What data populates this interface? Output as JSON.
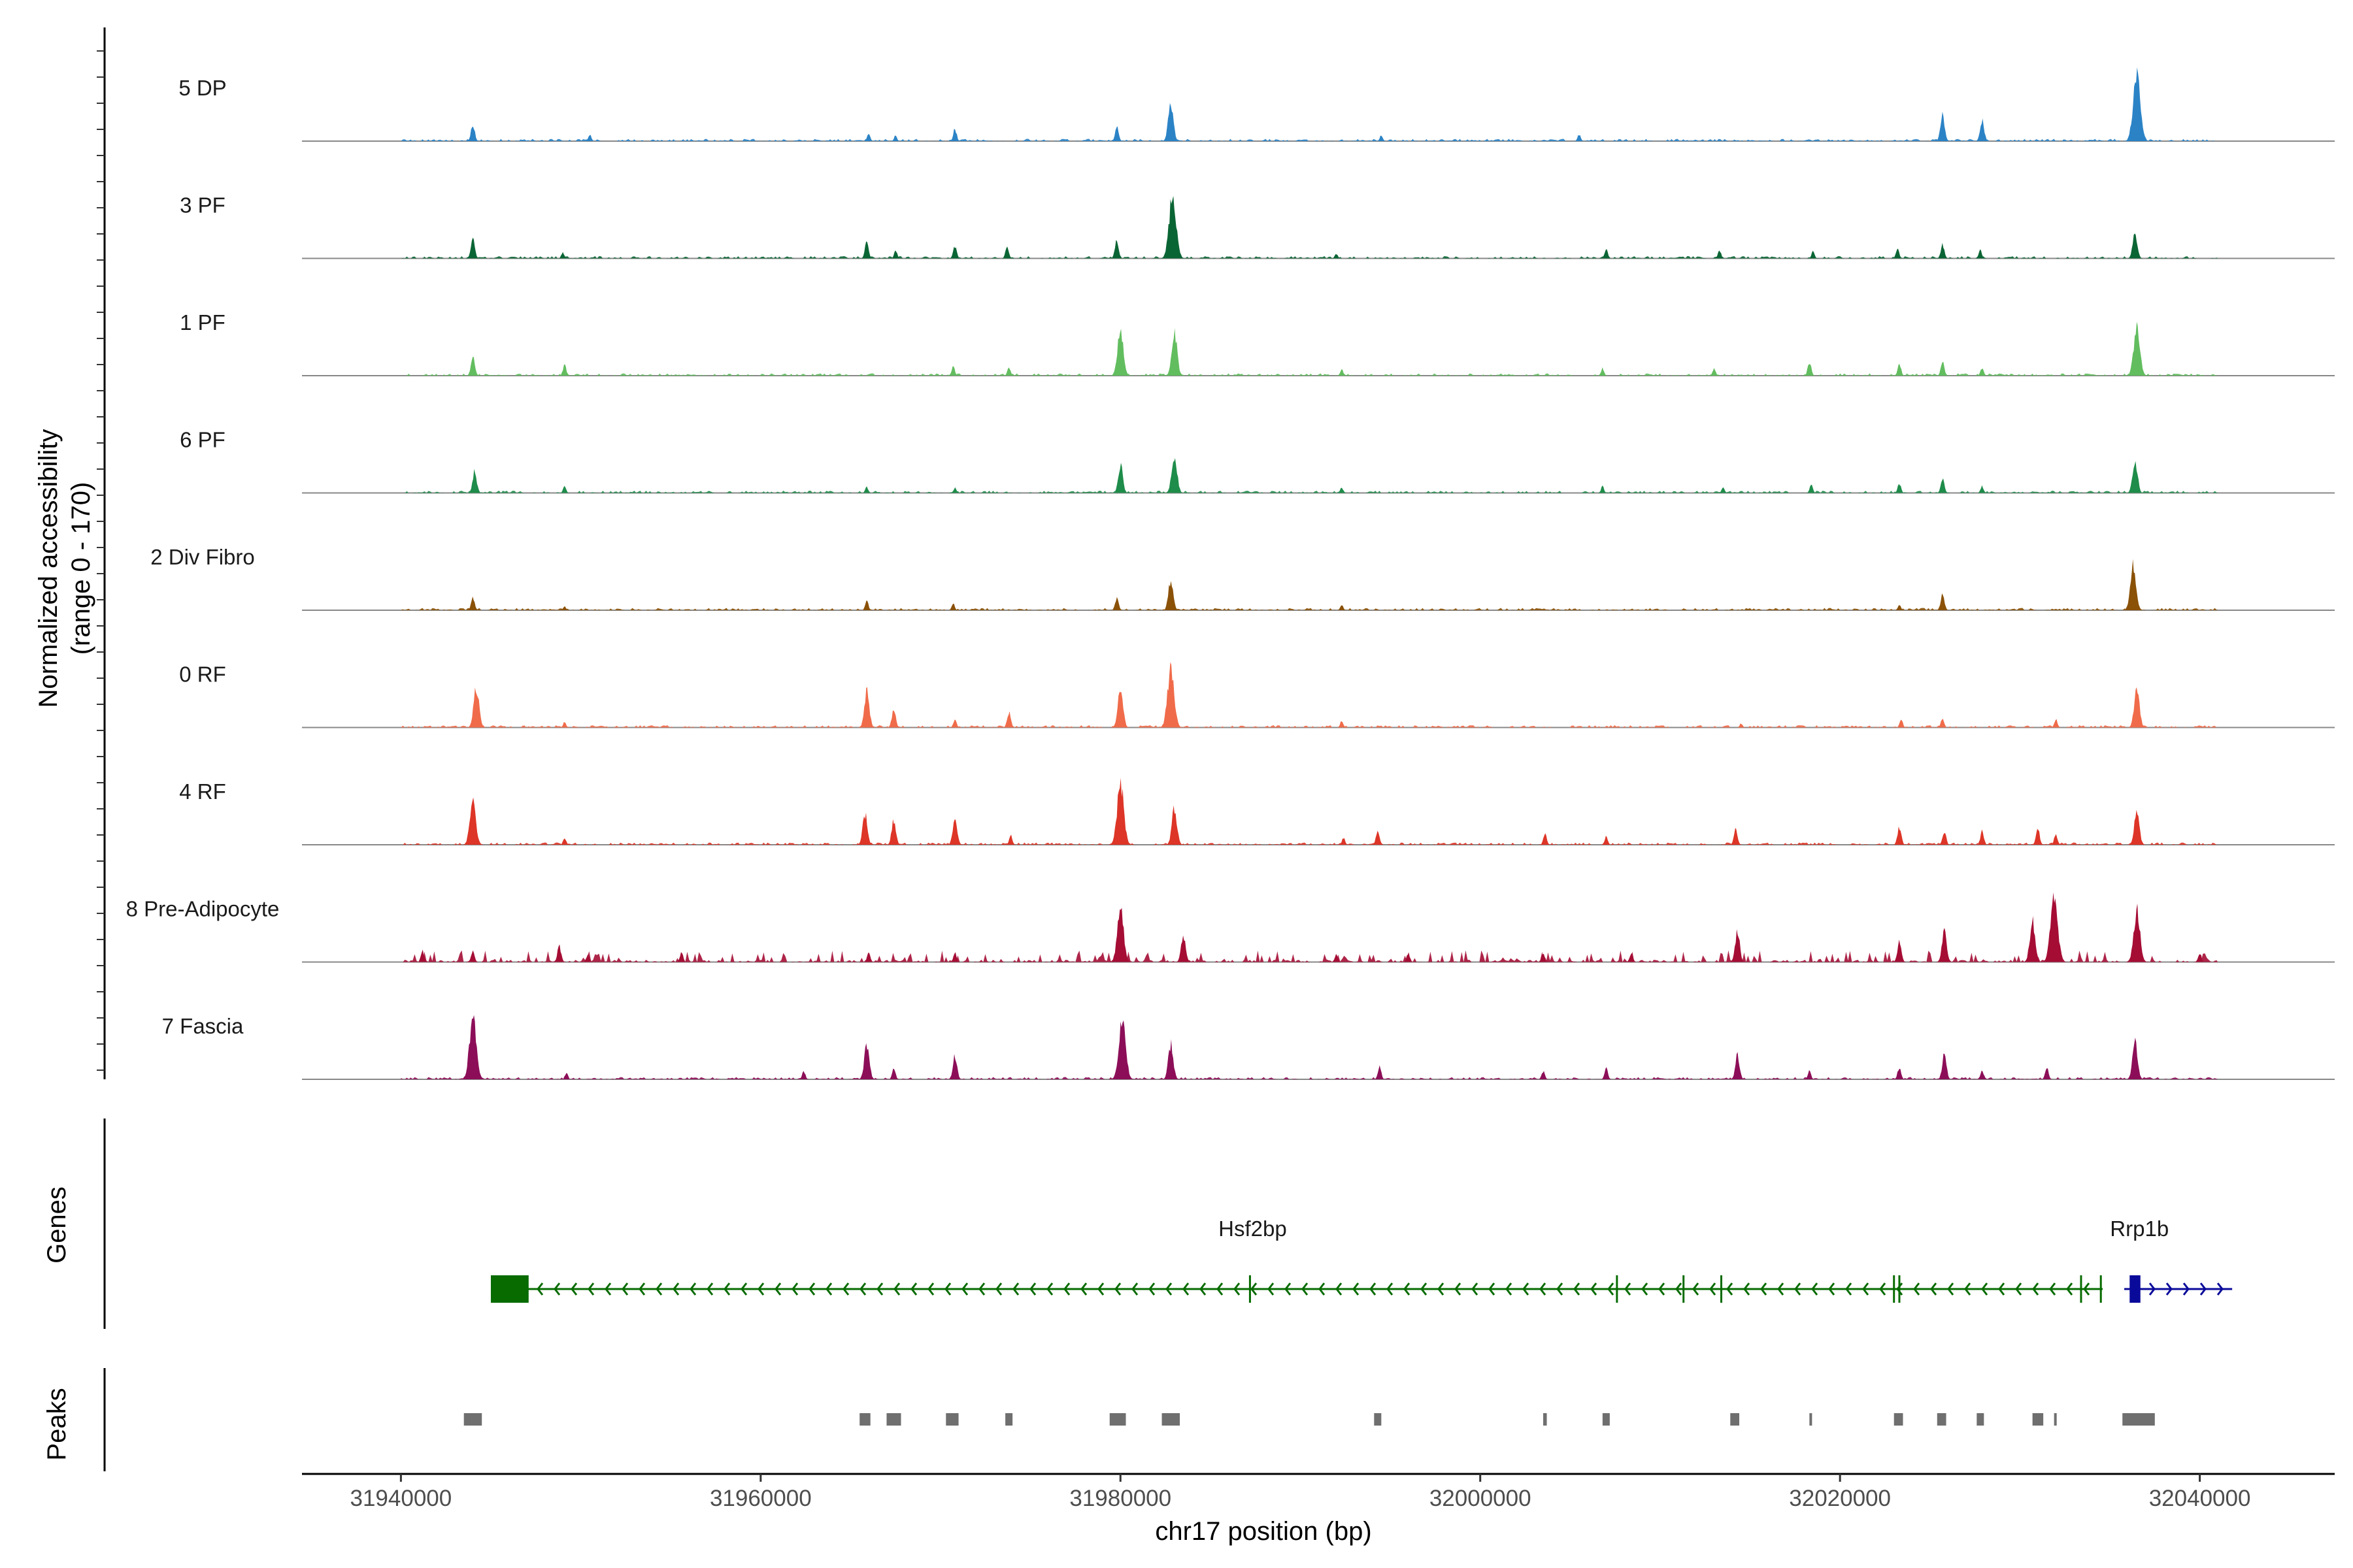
{
  "chart_data": {
    "type": "area",
    "title": "",
    "ylabel_lines": [
      "Normalized accessibility",
      "(range 0 - 170)"
    ],
    "xlabel": "chr17 position (bp)",
    "xlim": [
      31934500,
      32047500
    ],
    "x_ticks": [
      31940000,
      31960000,
      31980000,
      32000000,
      32020000,
      32040000
    ],
    "x_tick_labels": [
      "31940000",
      "31960000",
      "31980000",
      "32000000",
      "32020000",
      "32040000"
    ],
    "y_range": [
      0,
      170
    ],
    "coverage_span": [
      31940000,
      32041000
    ],
    "baseline_color": "#888888",
    "series": [
      {
        "name": "5 DP",
        "color": "#2b83c6",
        "peaks": [
          [
            31944000,
            0.26
          ],
          [
            31950500,
            0.1
          ],
          [
            31966000,
            0.12
          ],
          [
            31967500,
            0.08
          ],
          [
            31970800,
            0.18
          ],
          [
            31979800,
            0.22
          ],
          [
            31982800,
            0.55
          ],
          [
            31994500,
            0.09
          ],
          [
            32005500,
            0.1
          ],
          [
            32025700,
            0.38
          ],
          [
            32027900,
            0.32
          ],
          [
            32036500,
            1.0
          ]
        ]
      },
      {
        "name": "3 PF",
        "color": "#0a6534",
        "peaks": [
          [
            31944000,
            0.28
          ],
          [
            31949000,
            0.09
          ],
          [
            31965900,
            0.24
          ],
          [
            31967500,
            0.12
          ],
          [
            31970800,
            0.18
          ],
          [
            31973700,
            0.17
          ],
          [
            31979800,
            0.26
          ],
          [
            31982900,
            0.95
          ],
          [
            31992000,
            0.07
          ],
          [
            32007000,
            0.14
          ],
          [
            32013300,
            0.12
          ],
          [
            32018500,
            0.1
          ],
          [
            32023200,
            0.14
          ],
          [
            32025700,
            0.2
          ],
          [
            32027800,
            0.12
          ],
          [
            32036400,
            0.4
          ]
        ]
      },
      {
        "name": "1 PF",
        "color": "#62bd5f",
        "peaks": [
          [
            31944000,
            0.28
          ],
          [
            31949100,
            0.16
          ],
          [
            31970700,
            0.14
          ],
          [
            31973800,
            0.12
          ],
          [
            31980000,
            0.68
          ],
          [
            31983000,
            0.62
          ],
          [
            31992300,
            0.1
          ],
          [
            32006800,
            0.11
          ],
          [
            32013000,
            0.1
          ],
          [
            32018300,
            0.2
          ],
          [
            32023300,
            0.18
          ],
          [
            32025700,
            0.2
          ],
          [
            32027900,
            0.12
          ],
          [
            32036500,
            0.75
          ]
        ]
      },
      {
        "name": "6 PF",
        "color": "#1e8c4a",
        "peaks": [
          [
            31944100,
            0.33
          ],
          [
            31949100,
            0.1
          ],
          [
            31965900,
            0.09
          ],
          [
            31970800,
            0.08
          ],
          [
            31980000,
            0.42
          ],
          [
            31983000,
            0.58
          ],
          [
            31992300,
            0.08
          ],
          [
            32006800,
            0.1
          ],
          [
            32013500,
            0.08
          ],
          [
            32018400,
            0.12
          ],
          [
            32023300,
            0.14
          ],
          [
            32025700,
            0.22
          ],
          [
            32027900,
            0.1
          ],
          [
            32036400,
            0.5
          ]
        ]
      },
      {
        "name": "2 Div Fibro",
        "color": "#8a5107",
        "peaks": [
          [
            31944000,
            0.2
          ],
          [
            31949100,
            0.06
          ],
          [
            31965900,
            0.14
          ],
          [
            31970700,
            0.1
          ],
          [
            31979800,
            0.18
          ],
          [
            31982800,
            0.45
          ],
          [
            31992300,
            0.08
          ],
          [
            32023300,
            0.08
          ],
          [
            32025700,
            0.24
          ],
          [
            32036300,
            0.68
          ]
        ]
      },
      {
        "name": "0 RF",
        "color": "#f06b4a",
        "peaks": [
          [
            31944200,
            0.6
          ],
          [
            31949100,
            0.08
          ],
          [
            31965900,
            0.52
          ],
          [
            31967400,
            0.28
          ],
          [
            31970800,
            0.12
          ],
          [
            31973800,
            0.22
          ],
          [
            31980000,
            0.56
          ],
          [
            31982800,
            0.88
          ],
          [
            31992300,
            0.1
          ],
          [
            32014500,
            0.06
          ],
          [
            32023400,
            0.12
          ],
          [
            32025700,
            0.14
          ],
          [
            32032000,
            0.12
          ],
          [
            32036500,
            0.58
          ]
        ]
      },
      {
        "name": "4 RF",
        "color": "#dd3527",
        "peaks": [
          [
            31944000,
            0.7
          ],
          [
            31949100,
            0.1
          ],
          [
            31965800,
            0.46
          ],
          [
            31967400,
            0.36
          ],
          [
            31970800,
            0.4
          ],
          [
            31973900,
            0.14
          ],
          [
            31980000,
            0.9
          ],
          [
            31983000,
            0.54
          ],
          [
            31992400,
            0.1
          ],
          [
            31994300,
            0.2
          ],
          [
            32003600,
            0.16
          ],
          [
            32007000,
            0.12
          ],
          [
            32014200,
            0.22
          ],
          [
            32023300,
            0.26
          ],
          [
            32025800,
            0.2
          ],
          [
            32027900,
            0.2
          ],
          [
            32031000,
            0.24
          ],
          [
            32032000,
            0.16
          ],
          [
            32036500,
            0.5
          ]
        ]
      },
      {
        "name": "8 Pre-Adipocyte",
        "color": "#a50d35",
        "peaks": [
          [
            31941200,
            0.16
          ],
          [
            31944000,
            0.18
          ],
          [
            31948800,
            0.24
          ],
          [
            31950400,
            0.12
          ],
          [
            31955600,
            0.14
          ],
          [
            31966000,
            0.14
          ],
          [
            31970800,
            0.14
          ],
          [
            31980000,
            0.8
          ],
          [
            31983500,
            0.4
          ],
          [
            31992000,
            0.12
          ],
          [
            31996000,
            0.14
          ],
          [
            32003500,
            0.14
          ],
          [
            32008400,
            0.14
          ],
          [
            32014300,
            0.44
          ],
          [
            32023300,
            0.3
          ],
          [
            32025800,
            0.46
          ],
          [
            32030700,
            0.6
          ],
          [
            32031900,
            1.0
          ],
          [
            32036500,
            0.78
          ],
          [
            32040000,
            0.14
          ]
        ]
      },
      {
        "name": "7 Fascia",
        "color": "#8c0e58",
        "peaks": [
          [
            31944000,
            0.92
          ],
          [
            31949200,
            0.1
          ],
          [
            31962400,
            0.12
          ],
          [
            31965900,
            0.52
          ],
          [
            31967400,
            0.16
          ],
          [
            31970800,
            0.34
          ],
          [
            31980100,
            0.9
          ],
          [
            31982800,
            0.52
          ],
          [
            31994400,
            0.18
          ],
          [
            32003500,
            0.12
          ],
          [
            32007000,
            0.16
          ],
          [
            32014300,
            0.36
          ],
          [
            32018300,
            0.12
          ],
          [
            32023300,
            0.18
          ],
          [
            32025800,
            0.36
          ],
          [
            32027900,
            0.14
          ],
          [
            32031500,
            0.18
          ],
          [
            32036400,
            0.54
          ]
        ]
      }
    ],
    "gene_track_label": "Genes",
    "genes": [
      {
        "name": "Hsf2bp",
        "start": 31945000,
        "end": 32034600,
        "strand": "-",
        "color": "#076b00",
        "utr": [
          31945000,
          31947100
        ],
        "ticks": [
          31987200,
          32007600,
          32011300,
          32013400,
          32023000,
          32023300,
          32033400,
          32034500
        ]
      },
      {
        "name": "Rrp1b",
        "start": 32035800,
        "end": 32041800,
        "strand": "+",
        "color": "#0a0a9a",
        "utr": [
          32036100,
          32036700
        ],
        "ticks": []
      }
    ],
    "peaks_track_label": "Peaks",
    "peaks_color": "#6f6f6f",
    "peak_regions": [
      [
        31943500,
        31944500
      ],
      [
        31965500,
        31966100
      ],
      [
        31967000,
        31967800
      ],
      [
        31970300,
        31971000
      ],
      [
        31973600,
        31974000
      ],
      [
        31979400,
        31980300
      ],
      [
        31982300,
        31983300
      ],
      [
        31994100,
        31994500
      ],
      [
        32003500,
        32003700
      ],
      [
        32006800,
        32007200
      ],
      [
        32013900,
        32014400
      ],
      [
        32018300,
        32018400
      ],
      [
        32023000,
        32023500
      ],
      [
        32025400,
        32025900
      ],
      [
        32027600,
        32028000
      ],
      [
        32030700,
        32031300
      ],
      [
        32031900,
        32032000
      ],
      [
        32035700,
        32037500
      ]
    ]
  }
}
